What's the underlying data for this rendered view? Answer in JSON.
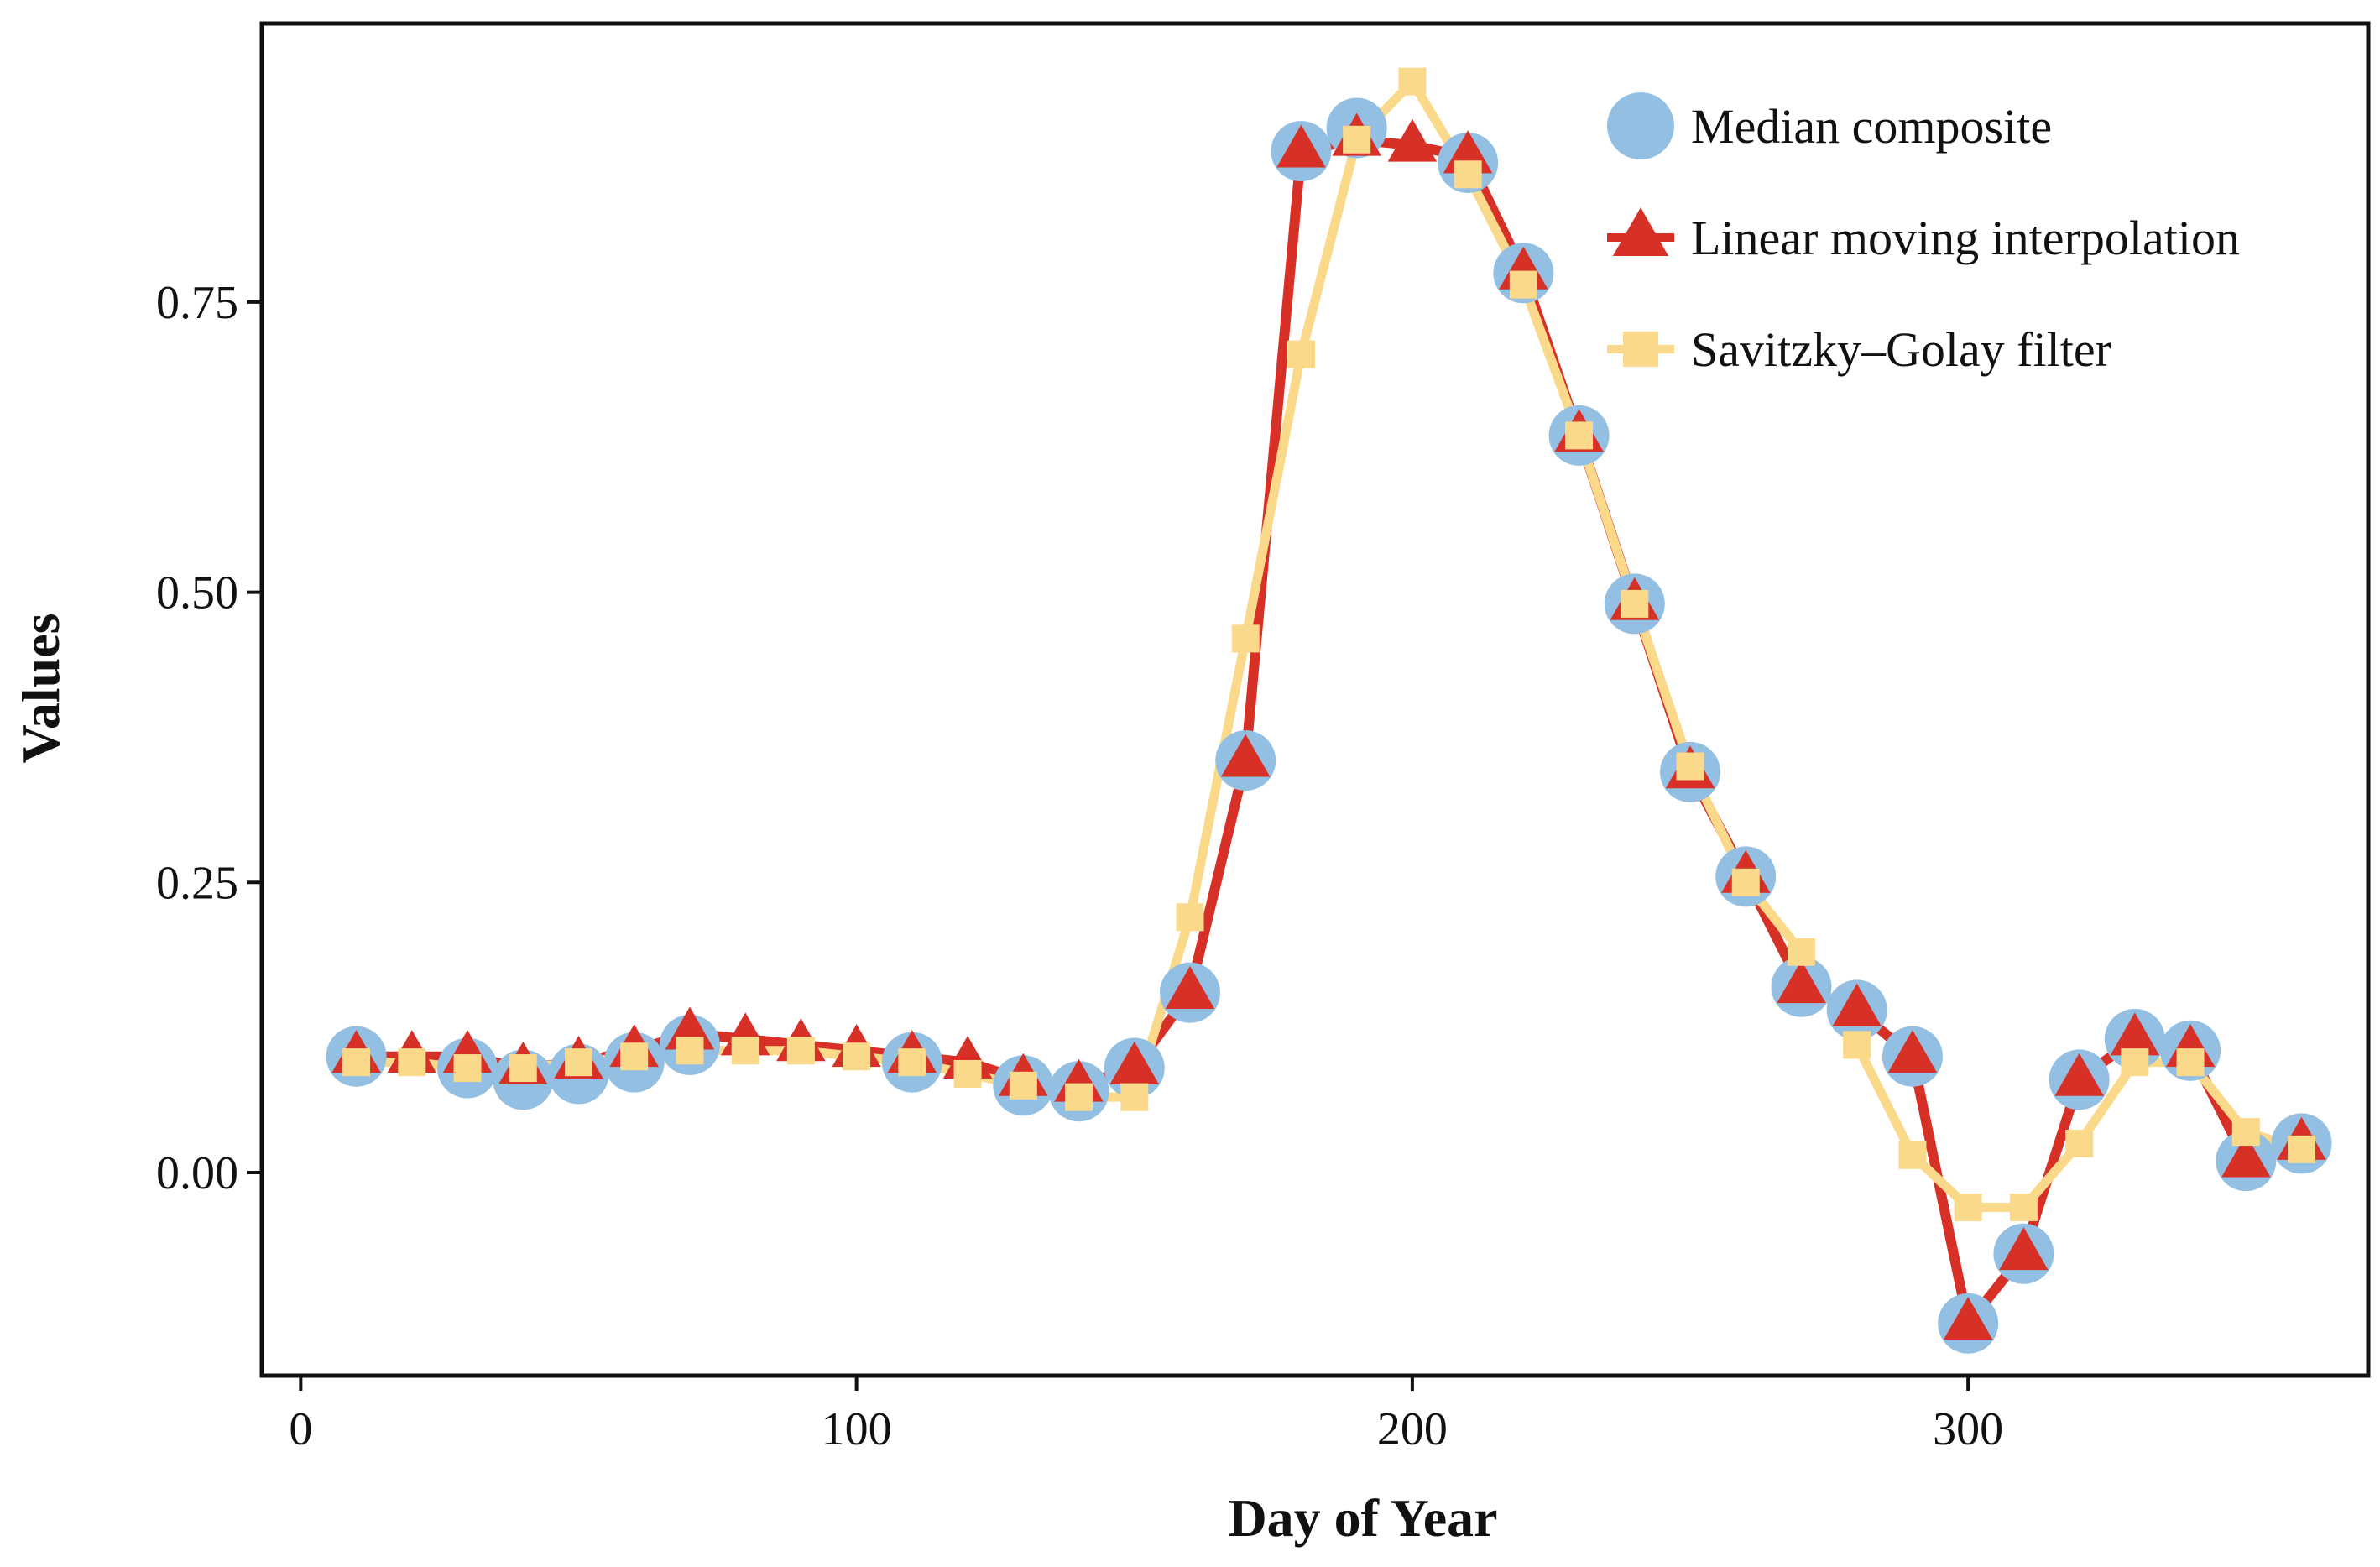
{
  "chart_data": {
    "type": "line",
    "title": "",
    "xlabel": "Day of Year",
    "ylabel": "Values",
    "xlim": [
      -7,
      372
    ],
    "ylim": [
      -0.175,
      0.99
    ],
    "xticks": [
      {
        "value": 0,
        "label": "0"
      },
      {
        "value": 100,
        "label": "100"
      },
      {
        "value": 200,
        "label": "200"
      },
      {
        "value": 300,
        "label": "300"
      }
    ],
    "yticks": [
      {
        "value": 0.0,
        "label": "0.00"
      },
      {
        "value": 0.25,
        "label": "0.25"
      },
      {
        "value": 0.5,
        "label": "0.50"
      },
      {
        "value": 0.75,
        "label": "0.75"
      }
    ],
    "grid": false,
    "legend_position": "top-right",
    "series": [
      {
        "name": "Median composite",
        "color": "#93bfe2",
        "marker": "circle",
        "line": false,
        "x": [
          10,
          30,
          40,
          50,
          60,
          70,
          110,
          130,
          140,
          150,
          160,
          170,
          180,
          190,
          210,
          220,
          230,
          240,
          250,
          260,
          270,
          280,
          290,
          300,
          310,
          320,
          330,
          340,
          350,
          360
        ],
        "y": [
          0.1,
          0.09,
          0.08,
          0.085,
          0.095,
          0.11,
          0.095,
          0.075,
          0.07,
          0.09,
          0.155,
          0.355,
          0.88,
          0.9,
          0.87,
          0.775,
          0.635,
          0.49,
          0.345,
          0.255,
          0.16,
          0.14,
          0.1,
          -0.13,
          -0.07,
          0.08,
          0.115,
          0.105,
          0.01,
          0.025
        ]
      },
      {
        "name": "Linear moving interpolation",
        "color": "#d73027",
        "marker": "triangle",
        "line": true,
        "x": [
          10,
          20,
          30,
          40,
          50,
          60,
          70,
          80,
          90,
          100,
          110,
          120,
          130,
          140,
          150,
          160,
          170,
          180,
          190,
          200,
          210,
          220,
          230,
          240,
          250,
          260,
          270,
          280,
          290,
          300,
          310,
          320,
          330,
          340,
          350,
          360
        ],
        "y": [
          0.1,
          0.1,
          0.1,
          0.09,
          0.095,
          0.105,
          0.12,
          0.115,
          0.11,
          0.105,
          0.1,
          0.095,
          0.08,
          0.075,
          0.09,
          0.155,
          0.355,
          0.88,
          0.89,
          0.885,
          0.875,
          0.775,
          0.635,
          0.49,
          0.345,
          0.255,
          0.16,
          0.14,
          0.1,
          -0.13,
          -0.07,
          0.08,
          0.115,
          0.105,
          0.01,
          0.025
        ]
      },
      {
        "name": "Savitzky–Golay filter",
        "color": "#fbd98b",
        "marker": "square",
        "line": true,
        "x": [
          10,
          20,
          30,
          40,
          50,
          60,
          70,
          80,
          90,
          100,
          110,
          120,
          130,
          140,
          150,
          160,
          170,
          180,
          190,
          200,
          210,
          220,
          230,
          240,
          250,
          260,
          270,
          280,
          290,
          300,
          310,
          320,
          330,
          340,
          350,
          360
        ],
        "y": [
          0.095,
          0.095,
          0.09,
          0.09,
          0.095,
          0.1,
          0.105,
          0.105,
          0.105,
          0.1,
          0.095,
          0.085,
          0.075,
          0.065,
          0.065,
          0.22,
          0.46,
          0.705,
          0.89,
          0.94,
          0.86,
          0.765,
          0.635,
          0.49,
          0.35,
          0.25,
          0.19,
          0.11,
          0.015,
          -0.03,
          -0.03,
          0.025,
          0.095,
          0.095,
          0.035,
          0.02
        ]
      }
    ]
  }
}
